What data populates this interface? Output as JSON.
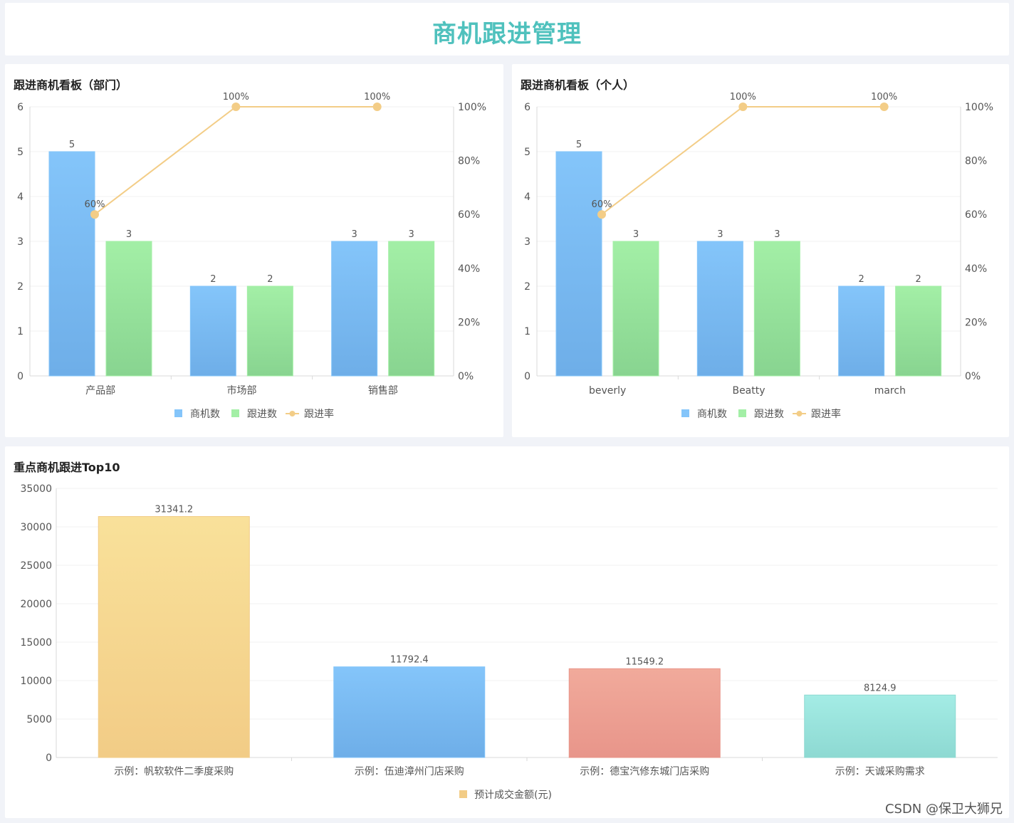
{
  "page": {
    "title": "商机跟进管理"
  },
  "watermark": "CSDN @保卫大狮兄",
  "colors": {
    "accent": "#4fc1bd",
    "bar_blue_top": "#84c5fa",
    "bar_blue_bottom": "#6eaee8",
    "bar_green_top": "#a3efa6",
    "bar_green_bottom": "#88d490",
    "line_orange": "#f3cd87",
    "bar_yellow_top": "#f9e19a",
    "bar_yellow_bottom": "#f2cc86",
    "bar_red_top": "#f1aa9b",
    "bar_red_bottom": "#e8958a",
    "bar_teal_top": "#a4ece5",
    "bar_teal_bottom": "#8dd9d2"
  },
  "chart_data": [
    {
      "id": "dept",
      "title": "跟进商机看板（部门）",
      "type": "bar+line",
      "categories": [
        "产品部",
        "市场部",
        "销售部"
      ],
      "series": [
        {
          "name": "商机数",
          "type": "bar",
          "values": [
            5,
            2,
            3
          ]
        },
        {
          "name": "跟进数",
          "type": "bar",
          "values": [
            3,
            2,
            3
          ]
        },
        {
          "name": "跟进率",
          "type": "line",
          "axis": "right",
          "values": [
            60,
            100,
            100
          ],
          "labels": [
            "60%",
            "100%",
            "100%"
          ]
        }
      ],
      "y_left": {
        "min": 0,
        "max": 6,
        "ticks": [
          "0",
          "1",
          "2",
          "3",
          "4",
          "5",
          "6"
        ]
      },
      "y_right": {
        "min": 0,
        "max": 100,
        "ticks": [
          "0%",
          "20%",
          "40%",
          "60%",
          "80%",
          "100%"
        ]
      },
      "legend": [
        "商机数",
        "跟进数",
        "跟进率"
      ]
    },
    {
      "id": "person",
      "title": "跟进商机看板（个人）",
      "type": "bar+line",
      "categories": [
        "beverly",
        "Beatty",
        "march"
      ],
      "series": [
        {
          "name": "商机数",
          "type": "bar",
          "values": [
            5,
            3,
            2
          ]
        },
        {
          "name": "跟进数",
          "type": "bar",
          "values": [
            3,
            3,
            2
          ]
        },
        {
          "name": "跟进率",
          "type": "line",
          "axis": "right",
          "values": [
            60,
            100,
            100
          ],
          "labels": [
            "60%",
            "100%",
            "100%"
          ]
        }
      ],
      "y_left": {
        "min": 0,
        "max": 6,
        "ticks": [
          "0",
          "1",
          "2",
          "3",
          "4",
          "5",
          "6"
        ]
      },
      "y_right": {
        "min": 0,
        "max": 100,
        "ticks": [
          "0%",
          "20%",
          "40%",
          "60%",
          "80%",
          "100%"
        ]
      },
      "legend": [
        "商机数",
        "跟进数",
        "跟进率"
      ]
    },
    {
      "id": "top10",
      "title": "重点商机跟进Top10",
      "type": "bar",
      "categories": [
        "示例：帆软软件二季度采购",
        "示例：伍迪漳州门店采购",
        "示例：德宝汽修东城门店采购",
        "示例：天诚采购需求"
      ],
      "series": [
        {
          "name": "预计成交金额(元)",
          "values": [
            31341.2,
            11792.4,
            11549.2,
            8124.9
          ],
          "labels": [
            "31341.2",
            "11792.4",
            "11549.2",
            "8124.9"
          ]
        }
      ],
      "y": {
        "min": 0,
        "max": 35000,
        "ticks": [
          "0",
          "5000",
          "10000",
          "15000",
          "20000",
          "25000",
          "30000",
          "35000"
        ]
      },
      "legend": [
        "预计成交金额(元)"
      ]
    }
  ]
}
